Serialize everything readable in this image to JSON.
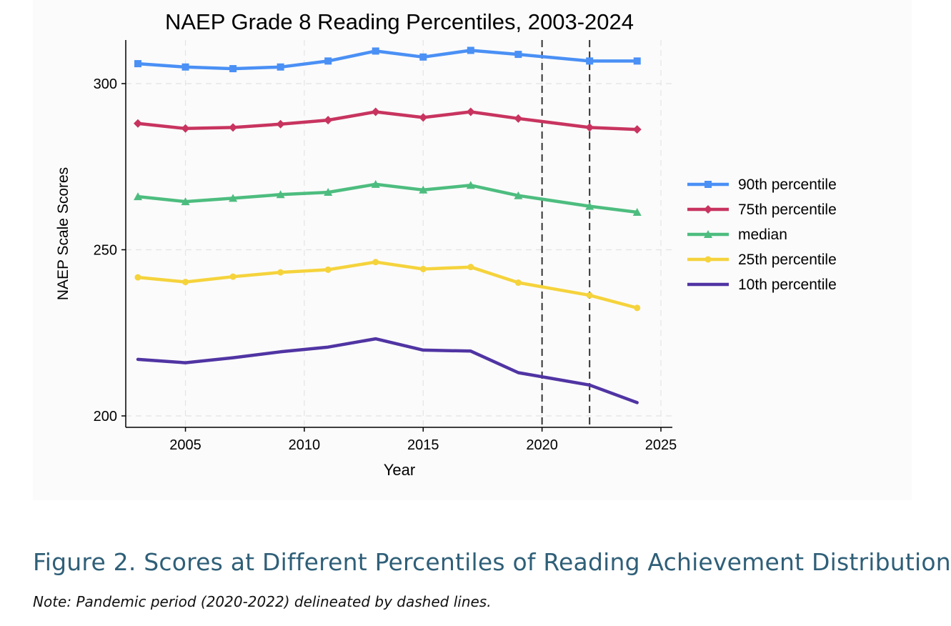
{
  "chart_data": {
    "type": "line",
    "title": "NAEP Grade 8 Reading Percentiles, 2003-2024",
    "xlabel": "Year",
    "ylabel": "NAEP Scale Scores",
    "xlim": [
      2002.5,
      2025.5
    ],
    "ylim": [
      197,
      310
    ],
    "xticks": [
      2005,
      2010,
      2015,
      2020,
      2025
    ],
    "yticks": [
      200,
      250,
      300
    ],
    "grid": true,
    "legend_position": "right",
    "reference_lines": [
      {
        "x": 2020,
        "style": "dashed"
      },
      {
        "x": 2022,
        "style": "dashed"
      }
    ],
    "x": [
      2003,
      2005,
      2007,
      2009,
      2011,
      2013,
      2015,
      2017,
      2019,
      2022,
      2024
    ],
    "series": [
      {
        "name": "90th percentile",
        "color": "#4a90f5",
        "marker": "square",
        "values": [
          306,
          305,
          304.5,
          305,
          306.8,
          309.8,
          308,
          310,
          308.8,
          306.8,
          306.8
        ]
      },
      {
        "name": "75th percentile",
        "color": "#c8345f",
        "marker": "diamond",
        "values": [
          288,
          286.5,
          286.8,
          287.8,
          289,
          291.5,
          289.8,
          291.5,
          289.5,
          286.8,
          286.2
        ]
      },
      {
        "name": "median",
        "color": "#4dbd7f",
        "marker": "triangle",
        "values": [
          266,
          264.5,
          265.5,
          266.6,
          267.3,
          269.7,
          268,
          269.4,
          266.3,
          263.1,
          261.3
        ]
      },
      {
        "name": "25th percentile",
        "color": "#f5d33c",
        "marker": "circle",
        "values": [
          241.7,
          240.3,
          241.9,
          243.2,
          244,
          246.3,
          244.2,
          244.8,
          240.1,
          236.3,
          232.5
        ]
      },
      {
        "name": "10th percentile",
        "color": "#5034a3",
        "marker": "none",
        "values": [
          217,
          216,
          217.5,
          219.3,
          220.7,
          223.2,
          219.8,
          219.5,
          213,
          209.3,
          204
        ]
      }
    ]
  },
  "caption": "Figure 2. Scores at Different Percentiles of Reading Achievement Distribution",
  "note": "Note: Pandemic period (2020-2022) delineated by dashed lines."
}
